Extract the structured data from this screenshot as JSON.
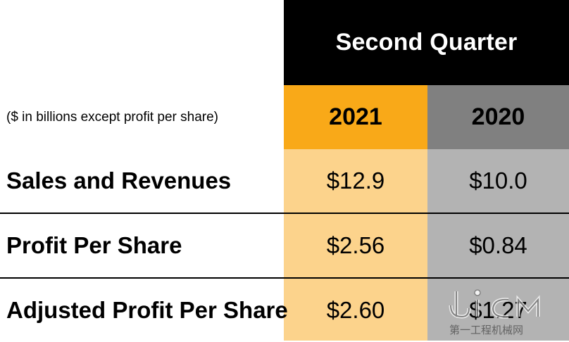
{
  "header": {
    "title": "Second Quarter"
  },
  "units_note": "($ in billions except profit per share)",
  "columns": [
    {
      "label": "2021",
      "color": "#f9a918",
      "fill_color": "#fcd38c"
    },
    {
      "label": "2020",
      "color": "#808080",
      "fill_color": "#b3b3b3"
    }
  ],
  "rows": [
    {
      "label": "Sales and Revenues",
      "values": [
        "$12.9",
        "$10.0"
      ]
    },
    {
      "label": "Profit Per Share",
      "values": [
        "$2.56",
        "$0.84"
      ]
    },
    {
      "label": "Adjusted Profit Per Share",
      "values": [
        "$2.60",
        "$1.27"
      ]
    }
  ],
  "watermark": {
    "logo_text": "dĩCM",
    "tagline": "第一工程机械网"
  }
}
